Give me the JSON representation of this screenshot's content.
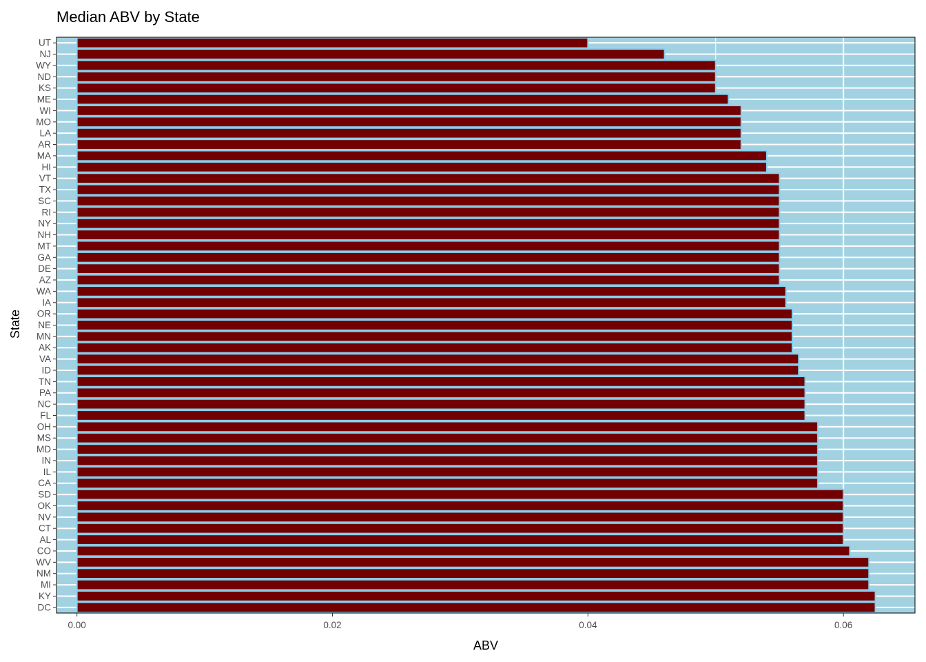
{
  "chart_data": {
    "type": "bar",
    "orientation": "horizontal",
    "title": "Median ABV by State",
    "xlabel": "ABV",
    "ylabel": "State",
    "xlim": [
      -0.0016,
      0.0656
    ],
    "x_ticks": [
      0.0,
      0.02,
      0.04,
      0.06
    ],
    "x_tick_labels": [
      "0.00",
      "0.02",
      "0.04",
      "0.06"
    ],
    "grid": true,
    "colors": {
      "panel_background": "#a2d2e2",
      "bar_fill": "#730000",
      "bar_outline": "#87ceeb",
      "grid": "#ffffff",
      "border": "#000000"
    },
    "categories": [
      "UT",
      "NJ",
      "WY",
      "ND",
      "KS",
      "ME",
      "WI",
      "MO",
      "LA",
      "AR",
      "MA",
      "HI",
      "VT",
      "TX",
      "SC",
      "RI",
      "NY",
      "NH",
      "MT",
      "GA",
      "DE",
      "AZ",
      "WA",
      "IA",
      "OR",
      "NE",
      "MN",
      "AK",
      "VA",
      "ID",
      "TN",
      "PA",
      "NC",
      "FL",
      "OH",
      "MS",
      "MD",
      "IN",
      "IL",
      "CA",
      "SD",
      "OK",
      "NV",
      "CT",
      "AL",
      "CO",
      "WV",
      "NM",
      "MI",
      "KY",
      "DC"
    ],
    "values": [
      0.04,
      0.046,
      0.05,
      0.05,
      0.05,
      0.051,
      0.052,
      0.052,
      0.052,
      0.052,
      0.054,
      0.054,
      0.055,
      0.055,
      0.055,
      0.055,
      0.055,
      0.055,
      0.055,
      0.055,
      0.055,
      0.055,
      0.0555,
      0.0555,
      0.056,
      0.056,
      0.056,
      0.056,
      0.0565,
      0.0565,
      0.057,
      0.057,
      0.057,
      0.057,
      0.058,
      0.058,
      0.058,
      0.058,
      0.058,
      0.058,
      0.06,
      0.06,
      0.06,
      0.06,
      0.06,
      0.0605,
      0.062,
      0.062,
      0.062,
      0.0625,
      0.0625
    ]
  }
}
